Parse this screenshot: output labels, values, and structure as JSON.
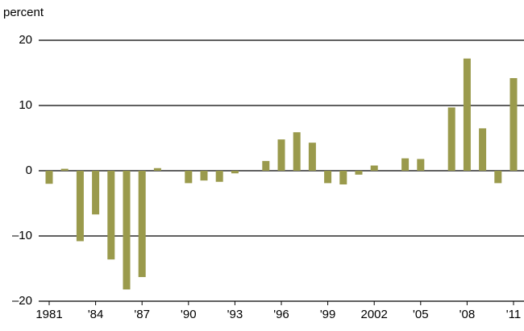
{
  "chart_data": {
    "type": "bar",
    "y_axis_label": "percent",
    "categories": [
      "1981",
      null,
      null,
      "'84",
      null,
      null,
      "'87",
      null,
      null,
      "'90",
      null,
      null,
      "'93",
      null,
      null,
      "'96",
      null,
      null,
      "'99",
      null,
      null,
      "2002",
      null,
      null,
      "'05",
      null,
      null,
      "'08",
      null,
      null,
      "'11"
    ],
    "values": [
      -2.0,
      0.3,
      -10.8,
      -6.7,
      -13.6,
      -18.2,
      -16.3,
      0.4,
      0,
      -1.9,
      -1.5,
      -1.7,
      -0.4,
      0,
      1.5,
      4.8,
      5.9,
      4.3,
      -1.9,
      -2.1,
      -0.6,
      0.8,
      0,
      1.9,
      1.8,
      0,
      9.7,
      17.2,
      6.5,
      -1.9,
      14.2
    ],
    "color": "#9a9a4c",
    "ylim": [
      -20,
      20
    ],
    "yticks": [
      {
        "value": -20,
        "label": "–20"
      },
      {
        "value": -10,
        "label": "–10"
      },
      0,
      10,
      20
    ],
    "grid": true
  }
}
